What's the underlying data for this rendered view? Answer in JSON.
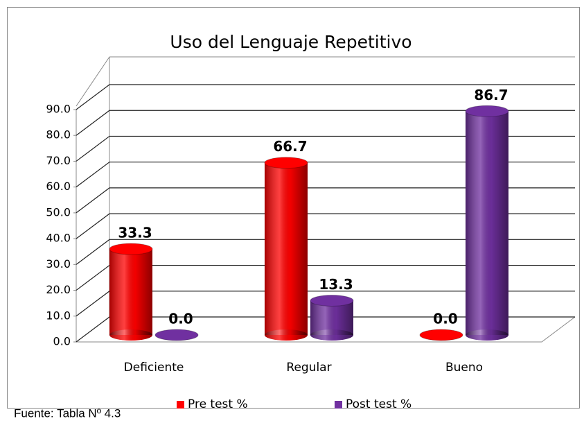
{
  "chart_data": {
    "type": "bar",
    "title": "Uso del Lenguaje Repetitivo",
    "categories": [
      "Deficiente",
      "Regular",
      "Bueno"
    ],
    "series": [
      {
        "name": "Pre test %",
        "color": "#ff0000",
        "values": [
          33.3,
          66.7,
          0
        ],
        "value_labels": [
          "33.3",
          "66.7",
          "0.0"
        ]
      },
      {
        "name": "Post test %",
        "color": "#7030a0",
        "values": [
          0,
          13.3,
          86.7
        ],
        "value_labels": [
          "0.0",
          "13.3",
          "86.7"
        ]
      }
    ],
    "ylim": [
      0,
      90
    ],
    "yticks": [
      {
        "value": 0,
        "label": "0.0"
      },
      {
        "value": 10,
        "label": "10.0"
      },
      {
        "value": 20,
        "label": "20.0"
      },
      {
        "value": 30,
        "label": "30.0"
      },
      {
        "value": 40,
        "label": "40.0"
      },
      {
        "value": 50,
        "label": "50.0"
      },
      {
        "value": 60,
        "label": "60.0"
      },
      {
        "value": 70,
        "label": "70.0"
      },
      {
        "value": 80,
        "label": "80.0"
      },
      {
        "value": 90,
        "label": "90.0"
      }
    ],
    "grid": true,
    "legend": "bottom",
    "source": "Fuente: Tabla Nº 4.3"
  }
}
